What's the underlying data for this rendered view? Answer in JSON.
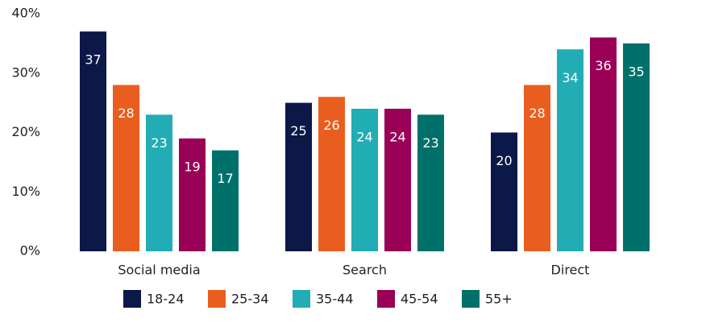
{
  "chart_data": {
    "type": "bar",
    "categories": [
      "Social media",
      "Search",
      "Direct"
    ],
    "series": [
      {
        "name": "18-24",
        "color": "#0b1848",
        "values": [
          37,
          25,
          20
        ]
      },
      {
        "name": "25-34",
        "color": "#e95e1e",
        "values": [
          28,
          26,
          28
        ]
      },
      {
        "name": "35-44",
        "color": "#22adb4",
        "values": [
          23,
          24,
          34
        ]
      },
      {
        "name": "45-54",
        "color": "#990056",
        "values": [
          19,
          24,
          36
        ]
      },
      {
        "name": "55+",
        "color": "#00716a",
        "values": [
          17,
          23,
          35
        ]
      }
    ],
    "ylim": [
      0,
      40
    ],
    "yticks": [
      {
        "value": 0,
        "label": "0%"
      },
      {
        "value": 10,
        "label": "10%"
      },
      {
        "value": 20,
        "label": "20%"
      },
      {
        "value": 30,
        "label": "30%"
      },
      {
        "value": 40,
        "label": "40%"
      }
    ],
    "grid": false,
    "legend": "bottom"
  }
}
